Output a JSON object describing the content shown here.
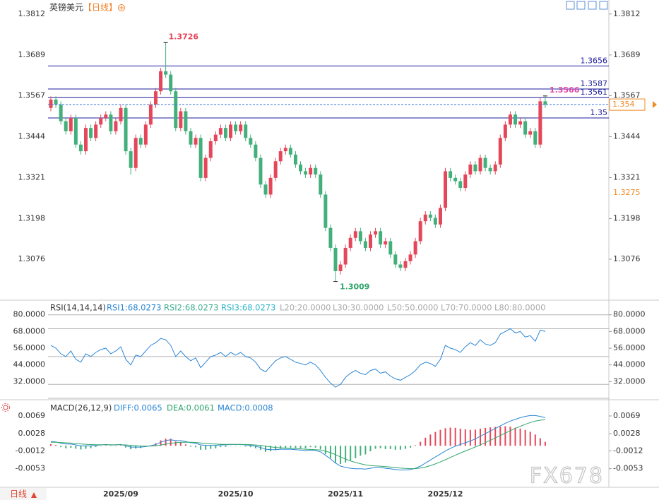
{
  "header": {
    "title": "英镑美元",
    "period": "【日线】"
  },
  "footer_period": "日线",
  "watermark": "FX678",
  "chart_data": [
    {
      "type": "candlestick",
      "categories": [
        null,
        null,
        null,
        null,
        null,
        null,
        null,
        null,
        null,
        null,
        null,
        null,
        null,
        null,
        "2025/09",
        null,
        null,
        null,
        null,
        null,
        null,
        null,
        null,
        null,
        null,
        null,
        null,
        null,
        null,
        null,
        null,
        null,
        null,
        null,
        null,
        null,
        null,
        "2025/10",
        null,
        null,
        null,
        null,
        null,
        null,
        null,
        null,
        null,
        null,
        null,
        null,
        null,
        null,
        null,
        null,
        null,
        null,
        null,
        null,
        null,
        "2025/11",
        null,
        null,
        null,
        null,
        null,
        null,
        null,
        null,
        null,
        null,
        null,
        null,
        null,
        null,
        null,
        null,
        null,
        null,
        null,
        "2025/12",
        null,
        null,
        null,
        null,
        null,
        null,
        null,
        null,
        null,
        null,
        null,
        null,
        null,
        null,
        null,
        null,
        null,
        null,
        null,
        null
      ],
      "open": [
        1.353,
        1.3555,
        1.354,
        1.349,
        1.346,
        1.35,
        1.342,
        1.34,
        1.347,
        1.344,
        1.348,
        1.35,
        1.351,
        1.346,
        1.349,
        1.353,
        1.34,
        1.335,
        1.344,
        1.342,
        1.348,
        1.354,
        1.358,
        1.364,
        1.363,
        1.358,
        1.347,
        1.352,
        1.346,
        1.342,
        1.344,
        1.332,
        1.338,
        1.343,
        1.345,
        1.347,
        1.344,
        1.348,
        1.346,
        1.348,
        1.344,
        1.342,
        1.338,
        1.33,
        1.327,
        1.332,
        1.337,
        1.34,
        1.341,
        1.339,
        1.336,
        1.334,
        1.333,
        1.335,
        1.333,
        1.327,
        1.317,
        1.311,
        1.304,
        1.306,
        1.311,
        1.314,
        1.316,
        1.313,
        1.311,
        1.315,
        1.316,
        1.312,
        1.313,
        1.309,
        1.306,
        1.305,
        1.307,
        1.309,
        1.313,
        1.319,
        1.321,
        1.32,
        1.318,
        1.323,
        1.334,
        1.332,
        1.331,
        1.329,
        1.333,
        1.336,
        1.334,
        1.338,
        1.335,
        1.334,
        1.336,
        1.344,
        1.348,
        1.351,
        1.348,
        1.349,
        1.345,
        1.346,
        1.342,
        1.355
      ],
      "high": [
        1.3565,
        1.3565,
        1.355,
        1.35,
        1.351,
        1.351,
        1.343,
        1.348,
        1.348,
        1.349,
        1.351,
        1.352,
        1.352,
        1.35,
        1.354,
        1.354,
        1.341,
        1.345,
        1.345,
        1.349,
        1.355,
        1.359,
        1.365,
        1.3726,
        1.364,
        1.359,
        1.353,
        1.353,
        1.347,
        1.345,
        1.345,
        1.339,
        1.344,
        1.346,
        1.348,
        1.348,
        1.349,
        1.349,
        1.349,
        1.349,
        1.345,
        1.343,
        1.339,
        1.331,
        1.333,
        1.338,
        1.341,
        1.342,
        1.342,
        1.34,
        1.337,
        1.335,
        1.336,
        1.336,
        1.334,
        1.328,
        1.318,
        1.312,
        1.307,
        1.312,
        1.315,
        1.317,
        1.317,
        1.314,
        1.316,
        1.317,
        1.317,
        1.314,
        1.314,
        1.31,
        1.307,
        1.308,
        1.31,
        1.314,
        1.32,
        1.322,
        1.322,
        1.321,
        1.324,
        1.335,
        1.335,
        1.333,
        1.332,
        1.334,
        1.337,
        1.337,
        1.339,
        1.339,
        1.336,
        1.337,
        1.345,
        1.349,
        1.352,
        1.352,
        1.35,
        1.35,
        1.347,
        1.347,
        1.356,
        1.3566
      ],
      "low": [
        1.352,
        1.353,
        1.348,
        1.345,
        1.345,
        1.341,
        1.339,
        1.339,
        1.343,
        1.343,
        1.347,
        1.349,
        1.345,
        1.345,
        1.348,
        1.339,
        1.333,
        1.334,
        1.341,
        1.341,
        1.347,
        1.353,
        1.357,
        1.362,
        1.357,
        1.346,
        1.346,
        1.345,
        1.341,
        1.341,
        1.331,
        1.331,
        1.337,
        1.342,
        1.344,
        1.343,
        1.343,
        1.345,
        1.345,
        1.343,
        1.341,
        1.337,
        1.329,
        1.326,
        1.326,
        1.331,
        1.336,
        1.339,
        1.338,
        1.335,
        1.333,
        1.332,
        1.332,
        1.332,
        1.326,
        1.316,
        1.31,
        1.3009,
        1.303,
        1.305,
        1.31,
        1.313,
        1.312,
        1.31,
        1.31,
        1.314,
        1.311,
        1.311,
        1.308,
        1.305,
        1.304,
        1.304,
        1.306,
        1.308,
        1.312,
        1.318,
        1.319,
        1.317,
        1.317,
        1.322,
        1.331,
        1.33,
        1.328,
        1.328,
        1.332,
        1.333,
        1.333,
        1.334,
        1.333,
        1.333,
        1.335,
        1.343,
        1.347,
        1.347,
        1.347,
        1.344,
        1.344,
        1.341,
        1.341,
        1.353
      ],
      "close": [
        1.3555,
        1.354,
        1.349,
        1.346,
        1.35,
        1.342,
        1.34,
        1.347,
        1.344,
        1.348,
        1.35,
        1.351,
        1.346,
        1.349,
        1.353,
        1.34,
        1.335,
        1.344,
        1.342,
        1.348,
        1.354,
        1.358,
        1.364,
        1.363,
        1.358,
        1.347,
        1.352,
        1.346,
        1.342,
        1.344,
        1.332,
        1.338,
        1.343,
        1.345,
        1.347,
        1.344,
        1.348,
        1.346,
        1.348,
        1.344,
        1.342,
        1.338,
        1.33,
        1.327,
        1.332,
        1.337,
        1.34,
        1.341,
        1.339,
        1.336,
        1.334,
        1.333,
        1.335,
        1.333,
        1.327,
        1.317,
        1.311,
        1.304,
        1.306,
        1.311,
        1.314,
        1.316,
        1.313,
        1.311,
        1.315,
        1.316,
        1.312,
        1.313,
        1.309,
        1.306,
        1.305,
        1.307,
        1.309,
        1.313,
        1.319,
        1.321,
        1.32,
        1.318,
        1.323,
        1.334,
        1.332,
        1.331,
        1.329,
        1.333,
        1.336,
        1.334,
        1.338,
        1.335,
        1.334,
        1.336,
        1.344,
        1.348,
        1.351,
        1.348,
        1.349,
        1.345,
        1.346,
        1.342,
        1.355,
        1.354
      ],
      "up_color": "#e5475a",
      "down_color": "#43b07c",
      "ylim": [
        1.2953,
        1.3854
      ],
      "yticks": [
        1.3812,
        1.3689,
        1.3567,
        1.3444,
        1.3321,
        1.3198,
        1.3076
      ],
      "levels": [
        1.3656,
        1.3587,
        1.3561,
        1.35
      ],
      "level_color": "#1c1c9c",
      "last_line_color": "#3a72d8",
      "last_box_color": "#f08a24",
      "marker_price": 1.3275,
      "marker_color": "#f08a24",
      "high_label_color": "#e5475a",
      "low_label_color": "#2fa56a",
      "last_label_color": "#e048a8"
    },
    {
      "type": "line",
      "title": "RSI(14,14,14)",
      "legend": [
        "RSI1:68.0273",
        "RSI2:68.0273",
        "RSI3:68.0273",
        "L20:20.0000",
        "L30:30.0000",
        "L50:50.0000",
        "L70:70.0000",
        "L80:80.0000"
      ],
      "legend_colors": [
        "#2b86d6",
        "#3fae8e",
        "#2fb5c8",
        "#aaaaaa",
        "#aaaaaa",
        "#aaaaaa",
        "#aaaaaa",
        "#aaaaaa"
      ],
      "values": [
        58,
        56,
        52,
        50,
        54,
        48,
        46,
        52,
        50,
        53,
        55,
        56,
        52,
        54,
        57,
        48,
        44,
        51,
        50,
        54,
        58,
        60,
        63,
        62,
        58,
        50,
        54,
        50,
        47,
        49,
        42,
        46,
        50,
        51,
        53,
        50,
        53,
        51,
        53,
        50,
        49,
        46,
        41,
        39,
        43,
        47,
        49,
        50,
        48,
        46,
        45,
        44,
        46,
        44,
        40,
        35,
        31,
        28,
        30,
        35,
        38,
        40,
        38,
        37,
        40,
        41,
        38,
        39,
        36,
        34,
        33,
        35,
        37,
        40,
        44,
        46,
        45,
        43,
        48,
        58,
        56,
        55,
        53,
        57,
        60,
        58,
        62,
        59,
        58,
        60,
        66,
        68,
        70,
        67,
        68,
        64,
        65,
        61,
        69,
        68
      ],
      "color": "#2b86d6",
      "ylim": [
        20,
        89
      ],
      "yticks": [
        {
          "value": 80,
          "label": "80.0000"
        },
        {
          "value": 68,
          "label": "68.0000"
        },
        {
          "value": 56,
          "label": "56.0000"
        },
        {
          "value": 44,
          "label": "44.0000"
        },
        {
          "value": 32,
          "label": "32.0000"
        }
      ],
      "levels": [
        20,
        30,
        50,
        70,
        80
      ],
      "grid_color": "#b4b4b4"
    },
    {
      "type": "macd",
      "title": "MACD(26,12,9)",
      "legend": [
        "DIFF:0.0065",
        "DEA:0.0061",
        "MACD:0.0008"
      ],
      "legend_colors": [
        "#2b86d6",
        "#2fa56a",
        "#2b86d6"
      ],
      "diff": [
        0.001,
        0.0009,
        0.0006,
        0.0004,
        0.0004,
        0.0002,
        0,
        0,
        0,
        0.0001,
        0.0002,
        0.0003,
        0.0002,
        0.0002,
        0.0003,
        0,
        -0.0003,
        -0.0003,
        -0.0003,
        -0.0002,
        0,
        0.0003,
        0.0008,
        0.0012,
        0.0014,
        0.0012,
        0.0012,
        0.001,
        0.0007,
        0.0006,
        0.0002,
        0.0001,
        0.0001,
        0.0001,
        0.0002,
        0.0002,
        0.0003,
        0.0003,
        0.0003,
        0.0002,
        0.0001,
        -0.0001,
        -0.0004,
        -0.0008,
        -0.0009,
        -0.0009,
        -0.0008,
        -0.0008,
        -0.0008,
        -0.0009,
        -0.001,
        -0.0011,
        -0.001,
        -0.0011,
        -0.0014,
        -0.0022,
        -0.003,
        -0.004,
        -0.0047,
        -0.005,
        -0.0052,
        -0.0053,
        -0.0053,
        -0.0054,
        -0.0052,
        -0.005,
        -0.005,
        -0.0052,
        -0.0053,
        -0.0055,
        -0.0056,
        -0.0056,
        -0.0055,
        -0.0052,
        -0.0047,
        -0.004,
        -0.0033,
        -0.0026,
        -0.0019,
        -0.0012,
        -0.0006,
        -0.0001,
        0.0003,
        0.0007,
        0.0011,
        0.0016,
        0.0022,
        0.0028,
        0.0034,
        0.004,
        0.0046,
        0.0052,
        0.0057,
        0.0061,
        0.0065,
        0.0068,
        0.007,
        0.007,
        0.0068,
        0.0065
      ],
      "dea": [
        0.0008,
        0.0008,
        0.00076,
        0.00069,
        0.00063,
        0.00054,
        0.00043,
        0.00035,
        0.00028,
        0.00024,
        0.00023,
        0.00025,
        0.00024,
        0.00023,
        0.00025,
        0.0002,
        0.0001,
        2e-05,
        -4e-05,
        -7e-05,
        -6e-05,
        1e-05,
        0.00017,
        0.00038,
        0.00058,
        0.0007,
        0.0008,
        0.00084,
        0.00081,
        0.00077,
        0.00066,
        0.00055,
        0.00046,
        0.00039,
        0.00035,
        0.00032,
        0.00032,
        0.00032,
        0.00032,
        0.0003,
        0.00026,
        0.00019,
        7e-05,
        -0.0001,
        -0.00026,
        -0.00039,
        -0.00047,
        -0.00054,
        -0.00059,
        -0.00065,
        -0.00072,
        -0.0008,
        -0.00084,
        -0.00089,
        -0.00099,
        -0.00123,
        -0.00158,
        -0.00206,
        -0.00259,
        -0.00307,
        -0.0035,
        -0.00386,
        -0.00415,
        -0.0044,
        -0.00456,
        -0.00465,
        -0.00472,
        -0.00482,
        -0.00492,
        -0.00504,
        -0.00515,
        -0.00524,
        -0.00529,
        -0.00527,
        -0.00516,
        -0.00493,
        -0.0046,
        -0.0042,
        -0.00374,
        -0.00323,
        -0.0027,
        -0.00218,
        -0.00168,
        -0.0012,
        -0.00074,
        -0.00027,
        0.00022,
        0.00074,
        0.00127,
        0.00182,
        0.00238,
        0.00294,
        0.00349,
        0.00401,
        0.00451,
        0.00497,
        0.00538,
        0.0057,
        0.00592,
        0.00604
      ],
      "hist": [
        0.0004,
        0.0002,
        -0.00032,
        -0.00058,
        -0.00046,
        -0.00068,
        -0.00086,
        -0.0007,
        -0.00056,
        -0.00028,
        -6e-05,
        0.0001,
        -8e-05,
        -6e-05,
        0.0001,
        -0.0004,
        -0.0008,
        -0.00064,
        -0.00052,
        -0.00026,
        0.00012,
        0.00058,
        0.00126,
        0.00164,
        0.00164,
        0.001,
        0.0008,
        0.00032,
        -0.00022,
        -0.00034,
        -0.00092,
        -0.0009,
        -0.00072,
        -0.00058,
        -0.0003,
        -0.00024,
        -4e-05,
        -4e-05,
        -4e-05,
        -0.0002,
        -0.00032,
        -0.00058,
        -0.00094,
        -0.0014,
        -0.00128,
        -0.00102,
        -0.00066,
        -0.00052,
        -0.00042,
        -0.0005,
        -0.00056,
        -0.0006,
        -0.00032,
        -0.00042,
        -0.00082,
        -0.00194,
        -0.00284,
        -0.00388,
        -0.00422,
        -0.00386,
        -0.0034,
        -0.00288,
        -0.0023,
        -0.002,
        -0.00128,
        -0.0007,
        -0.00056,
        -0.00076,
        -0.00076,
        -0.00092,
        -0.0009,
        -0.00072,
        -0.00042,
        0.00014,
        0.00092,
        0.00186,
        0.0026,
        0.0032,
        0.00368,
        0.00406,
        0.0042,
        0.00416,
        0.00396,
        0.0038,
        0.00368,
        0.00374,
        0.00396,
        0.00412,
        0.00426,
        0.00436,
        0.00444,
        0.00452,
        0.00442,
        0.00418,
        0.00398,
        0.00366,
        0.00324,
        0.0026,
        0.00176,
        0.00092
      ],
      "diff_color": "#2b86d6",
      "dea_color": "#2fa56a",
      "up_color": "#e5475a",
      "down_color": "#43b07c",
      "ylim": [
        -0.0096,
        0.01
      ],
      "yticks": [
        0.0069,
        0.0028,
        -0.0012,
        -0.0053
      ]
    }
  ]
}
